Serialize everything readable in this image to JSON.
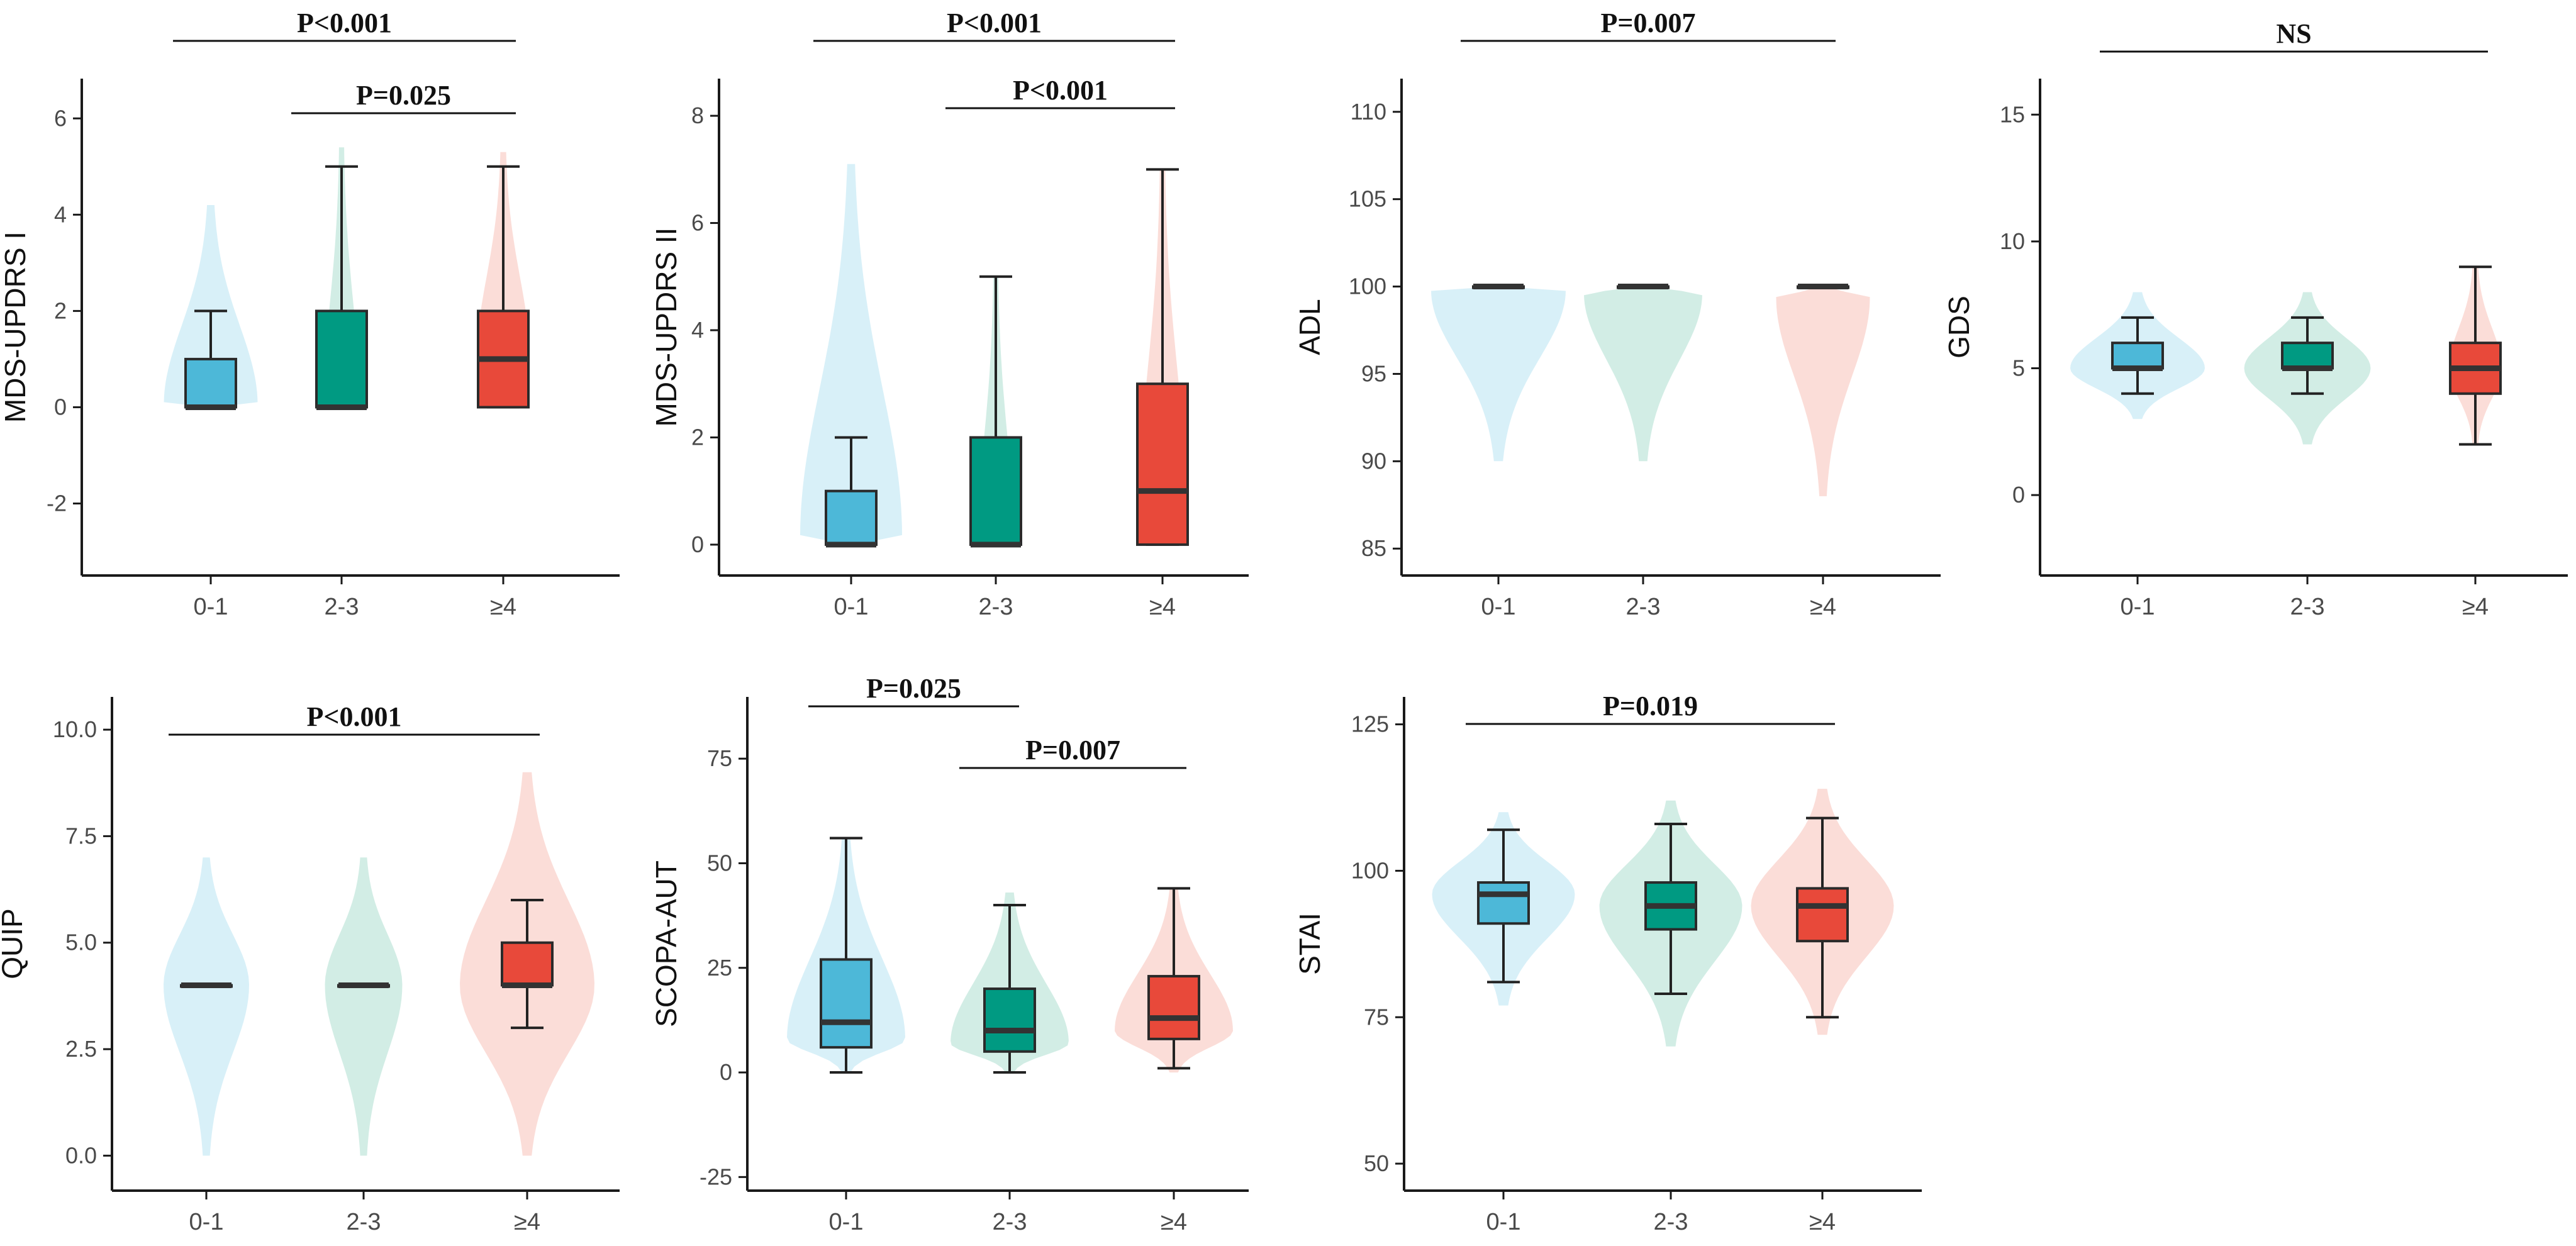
{
  "colors": {
    "group_fills": [
      "#4db8d8",
      "#009a82",
      "#e8493a"
    ],
    "violin_fills": [
      "#d4eef7",
      "#cdebe2",
      "#fbd9d4"
    ],
    "axis": "#1a1a1a",
    "median": "#333333"
  },
  "chart_data": [
    {
      "type": "box-violin",
      "ylabel": "MDS-UPDRS I",
      "ylim": [
        -3.3,
        6.5
      ],
      "yticks": [
        -2,
        0,
        2,
        4,
        6
      ],
      "categories": [
        "0-1",
        "2-3",
        "≥4"
      ],
      "boxes": [
        {
          "min": 0,
          "q1": 0,
          "median": 0,
          "q3": 1,
          "max": 2
        },
        {
          "min": 0,
          "q1": 0,
          "median": 0,
          "q3": 2,
          "max": 5
        },
        {
          "min": 0,
          "q1": 0,
          "median": 1,
          "q3": 2,
          "max": 5
        }
      ],
      "violins": [
        {
          "lo": 0,
          "hi": 4.2,
          "mode": 0.05,
          "width": 0.55
        },
        {
          "lo": 0,
          "hi": 5.4,
          "mode": 0,
          "width": 0.2
        },
        {
          "lo": 0,
          "hi": 5.3,
          "mode": 1,
          "width": 0.3
        }
      ],
      "significance": [
        {
          "from": 0,
          "to": 2,
          "label": "P<0.001",
          "level": 1
        },
        {
          "from": 1,
          "to": 2,
          "label": "P=0.025",
          "level": 0
        }
      ]
    },
    {
      "type": "box-violin",
      "ylabel": "MDS-UPDRS II",
      "ylim": [
        -0.4,
        8.4
      ],
      "yticks": [
        0,
        2,
        4,
        6,
        8
      ],
      "categories": [
        "0-1",
        "2-3",
        "≥4"
      ],
      "boxes": [
        {
          "min": 0,
          "q1": 0,
          "median": 0,
          "q3": 1,
          "max": 2
        },
        {
          "min": 0,
          "q1": 0,
          "median": 0,
          "q3": 2,
          "max": 5
        },
        {
          "min": 0,
          "q1": 0,
          "median": 1,
          "q3": 3,
          "max": 7
        }
      ],
      "violins": [
        {
          "lo": 0,
          "hi": 7.1,
          "mode": 0.15,
          "width": 0.6
        },
        {
          "lo": 0,
          "hi": 5,
          "mode": 0,
          "width": 0.2
        },
        {
          "lo": 0,
          "hi": 7,
          "mode": 1,
          "width": 0.25
        }
      ],
      "significance": [
        {
          "from": 0,
          "to": 2,
          "label": "P<0.001",
          "level": 1
        },
        {
          "from": 1,
          "to": 2,
          "label": "P<0.001",
          "level": 0
        }
      ]
    },
    {
      "type": "box-violin",
      "ylabel": "ADL",
      "ylim": [
        84,
        111
      ],
      "yticks": [
        85,
        90,
        95,
        100,
        105,
        110
      ],
      "categories": [
        "0-1",
        "2-3",
        "≥4"
      ],
      "boxes": [
        {
          "min": 100,
          "q1": 100,
          "median": 100,
          "q3": 100,
          "max": 100
        },
        {
          "min": 100,
          "q1": 100,
          "median": 100,
          "q3": 100,
          "max": 100
        },
        {
          "min": 100,
          "q1": 100,
          "median": 100,
          "q3": 100,
          "max": 100
        }
      ],
      "violins": [
        {
          "lo": 90,
          "hi": 100,
          "mode": 99.8,
          "width": 0.8
        },
        {
          "lo": 90,
          "hi": 100,
          "mode": 99.6,
          "width": 0.7
        },
        {
          "lo": 88,
          "hi": 100,
          "mode": 99.4,
          "width": 0.55
        }
      ],
      "significance": [
        {
          "from": 0,
          "to": 2,
          "label": "P=0.007",
          "level": 1
        }
      ]
    },
    {
      "type": "box-violin",
      "ylabel": "GDS",
      "ylim": [
        -2.8,
        15.8
      ],
      "yticks": [
        0,
        5,
        10,
        15
      ],
      "categories": [
        "0-1",
        "2-3",
        "≥4"
      ],
      "boxes": [
        {
          "min": 4,
          "q1": 5,
          "median": 5,
          "q3": 6,
          "max": 7
        },
        {
          "min": 4,
          "q1": 5,
          "median": 5,
          "q3": 6,
          "max": 7
        },
        {
          "min": 2,
          "q1": 4,
          "median": 5,
          "q3": 6,
          "max": 9
        }
      ],
      "violins": [
        {
          "lo": 3,
          "hi": 8,
          "mode": 5,
          "width": 0.8
        },
        {
          "lo": 2,
          "hi": 8,
          "mode": 5,
          "width": 0.75
        },
        {
          "lo": 2,
          "hi": 9,
          "mode": 5,
          "width": 0.3
        }
      ],
      "significance": [
        {
          "from": 0,
          "to": 2,
          "label": "NS",
          "level": 1
        }
      ]
    },
    {
      "type": "box-violin",
      "ylabel": "QUIP",
      "ylim": [
        -0.6,
        10.4
      ],
      "yticks": [
        0.0,
        2.5,
        5.0,
        7.5,
        10.0
      ],
      "ytick_labels": [
        "0.0",
        "2.5",
        "5.0",
        "7.5",
        "10.0"
      ],
      "categories": [
        "0-1",
        "2-3",
        "≥4"
      ],
      "boxes": [
        {
          "min": 4,
          "q1": 4,
          "median": 4,
          "q3": 4,
          "max": 4
        },
        {
          "min": 4,
          "q1": 4,
          "median": 4,
          "q3": 4,
          "max": 4
        },
        {
          "min": 3,
          "q1": 4,
          "median": 4,
          "q3": 5,
          "max": 6
        }
      ],
      "violins": [
        {
          "lo": 0,
          "hi": 7,
          "mode": 4,
          "width": 0.5
        },
        {
          "lo": 0,
          "hi": 7,
          "mode": 4,
          "width": 0.45
        },
        {
          "lo": 0,
          "hi": 9,
          "mode": 4,
          "width": 0.8
        }
      ],
      "significance": [
        {
          "from": 0,
          "to": 2,
          "label": "P<0.001",
          "level": 0
        }
      ]
    },
    {
      "type": "box-violin",
      "ylabel": "SCOPA-AUT",
      "ylim": [
        -26,
        86
      ],
      "yticks": [
        -25,
        0,
        25,
        50,
        75
      ],
      "categories": [
        "0-1",
        "2-3",
        "≥4"
      ],
      "boxes": [
        {
          "min": 0,
          "q1": 6,
          "median": 12,
          "q3": 27,
          "max": 56
        },
        {
          "min": 0,
          "q1": 5,
          "median": 10,
          "q3": 20,
          "max": 40
        },
        {
          "min": 1,
          "q1": 8,
          "median": 13,
          "q3": 23,
          "max": 44
        }
      ],
      "violins": [
        {
          "lo": 0,
          "hi": 56,
          "mode": 8,
          "width": 0.7
        },
        {
          "lo": 0,
          "hi": 43,
          "mode": 7,
          "width": 0.7
        },
        {
          "lo": 0,
          "hi": 44,
          "mode": 10,
          "width": 0.7
        }
      ],
      "significance": [
        {
          "from": 0,
          "to": 1,
          "label": "P=0.025",
          "level": 1
        },
        {
          "from": 1,
          "to": 2,
          "label": "P=0.007",
          "level": 0
        }
      ]
    },
    {
      "type": "box-violin",
      "ylabel": "STAI",
      "ylim": [
        47,
        127
      ],
      "yticks": [
        50,
        75,
        100,
        125
      ],
      "categories": [
        "0-1",
        "2-3",
        "≥4"
      ],
      "boxes": [
        {
          "min": 81,
          "q1": 91,
          "median": 96,
          "q3": 98,
          "max": 107
        },
        {
          "min": 79,
          "q1": 90,
          "median": 94,
          "q3": 98,
          "max": 108
        },
        {
          "min": 75,
          "q1": 88,
          "median": 94,
          "q3": 97,
          "max": 109
        }
      ],
      "violins": [
        {
          "lo": 77,
          "hi": 110,
          "mode": 96,
          "width": 0.85
        },
        {
          "lo": 70,
          "hi": 112,
          "mode": 94,
          "width": 0.85
        },
        {
          "lo": 72,
          "hi": 114,
          "mode": 94,
          "width": 0.85
        }
      ],
      "significance": [
        {
          "from": 0,
          "to": 2,
          "label": "P=0.019",
          "level": 0
        }
      ]
    }
  ]
}
